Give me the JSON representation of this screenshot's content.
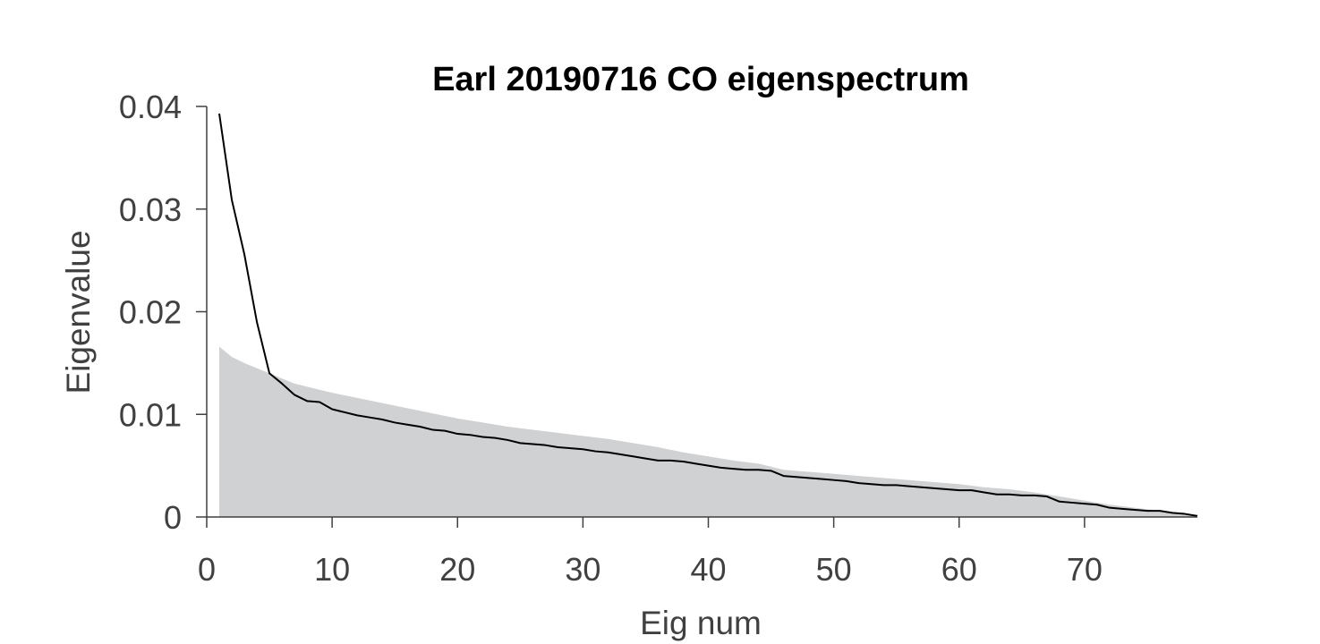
{
  "chart_data": {
    "type": "line",
    "title": "Earl 20190716 CO eigenspectrum",
    "xlabel": "Eig num",
    "ylabel": "Eigenvalue",
    "xlim": [
      0,
      79
    ],
    "ylim": [
      0,
      0.04
    ],
    "x_ticks": [
      0,
      10,
      20,
      30,
      40,
      50,
      60,
      70
    ],
    "y_ticks": [
      0,
      0.01,
      0.02,
      0.03,
      0.04
    ],
    "x_tick_labels": [
      "0",
      "10",
      "20",
      "30",
      "40",
      "50",
      "60",
      "70"
    ],
    "y_tick_labels": [
      "0",
      "0.01",
      "0.02",
      "0.03",
      "0.04"
    ],
    "grid": false,
    "legend": "none",
    "colors": {
      "line": "#000000",
      "area": "#d0d1d3",
      "axis": "#404040"
    },
    "series": [
      {
        "type": "line",
        "x": [
          1,
          2,
          3,
          4,
          5,
          6,
          7,
          8,
          9,
          10,
          11,
          12,
          13,
          14,
          15,
          16,
          17,
          18,
          19,
          20,
          21,
          22,
          23,
          24,
          25,
          26,
          27,
          28,
          29,
          30,
          31,
          32,
          33,
          34,
          35,
          36,
          37,
          38,
          39,
          40,
          41,
          42,
          43,
          44,
          45,
          46,
          47,
          48,
          49,
          50,
          51,
          52,
          53,
          54,
          55,
          56,
          57,
          58,
          59,
          60,
          61,
          62,
          63,
          64,
          65,
          66,
          67,
          68,
          69,
          70,
          71,
          72,
          73,
          74,
          75,
          76,
          77,
          78,
          79
        ],
        "y": [
          0.0393,
          0.0309,
          0.0256,
          0.019,
          0.014,
          0.013,
          0.0119,
          0.0113,
          0.0112,
          0.0105,
          0.0102,
          0.0099,
          0.0097,
          0.0095,
          0.0092,
          0.009,
          0.0088,
          0.0085,
          0.0084,
          0.0081,
          0.008,
          0.0078,
          0.0077,
          0.0075,
          0.0072,
          0.0071,
          0.007,
          0.0068,
          0.0067,
          0.0066,
          0.0064,
          0.0063,
          0.0061,
          0.0059,
          0.0057,
          0.0055,
          0.0055,
          0.0054,
          0.0052,
          0.005,
          0.0048,
          0.0047,
          0.0046,
          0.0046,
          0.0045,
          0.004,
          0.0039,
          0.0038,
          0.0037,
          0.0036,
          0.0035,
          0.0033,
          0.0032,
          0.0031,
          0.0031,
          0.003,
          0.0029,
          0.0028,
          0.0027,
          0.0026,
          0.0026,
          0.0024,
          0.0022,
          0.0022,
          0.0021,
          0.0021,
          0.002,
          0.0015,
          0.0014,
          0.0013,
          0.0012,
          0.0009,
          0.0008,
          0.0007,
          0.0006,
          0.0006,
          0.0004,
          0.0003,
          0.0001
        ]
      },
      {
        "type": "area",
        "x": [
          1,
          2,
          3,
          4,
          5,
          6,
          7,
          8,
          9,
          10,
          12,
          14,
          16,
          18,
          20,
          22,
          24,
          26,
          28,
          30,
          32,
          34,
          36,
          38,
          40,
          42,
          44,
          45,
          46,
          48,
          50,
          52,
          54,
          56,
          58,
          60,
          62,
          64,
          66,
          68,
          70,
          72,
          74,
          76,
          78,
          79
        ],
        "y": [
          0.0166,
          0.0156,
          0.015,
          0.0145,
          0.014,
          0.0135,
          0.013,
          0.0127,
          0.0124,
          0.0121,
          0.0116,
          0.0111,
          0.0106,
          0.0101,
          0.0096,
          0.0092,
          0.0088,
          0.0085,
          0.0082,
          0.0079,
          0.0076,
          0.0072,
          0.0068,
          0.0063,
          0.0059,
          0.0055,
          0.0052,
          0.0049,
          0.0046,
          0.0044,
          0.0042,
          0.004,
          0.0038,
          0.0036,
          0.0034,
          0.0032,
          0.0029,
          0.0027,
          0.0024,
          0.002,
          0.0016,
          0.0012,
          0.0009,
          0.0006,
          0.0003,
          0.0002
        ]
      }
    ]
  }
}
